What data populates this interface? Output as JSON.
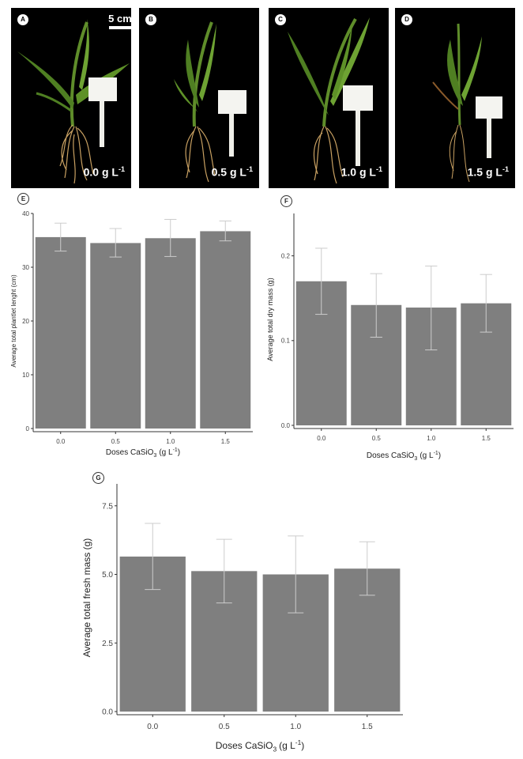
{
  "photos": [
    {
      "id": "A",
      "dose_value": "0.0",
      "dose_unit": "g L",
      "dose_exp": "-1",
      "scale_label": "5 cm"
    },
    {
      "id": "B",
      "dose_value": "0.5",
      "dose_unit": "g L",
      "dose_exp": "-1"
    },
    {
      "id": "C",
      "dose_value": "1.0",
      "dose_unit": "g L",
      "dose_exp": "-1"
    },
    {
      "id": "D",
      "dose_value": "1.5",
      "dose_unit": "g L",
      "dose_exp": "-1"
    }
  ],
  "colors": {
    "bar": "#7f7f7f",
    "error_bar": "#cccccc",
    "axis": "#333333",
    "photo_bg": "#000000"
  },
  "chart_data": [
    {
      "id": "E",
      "type": "bar",
      "categories": [
        "0.0",
        "0.5",
        "1.0",
        "1.5"
      ],
      "values": [
        35.6,
        34.5,
        35.4,
        36.7
      ],
      "error_low": [
        33.0,
        31.9,
        32.0,
        34.9
      ],
      "error_high": [
        38.2,
        37.2,
        38.9,
        38.6
      ],
      "ylim": [
        0,
        40
      ],
      "yticks": [
        0,
        10,
        20,
        30,
        40
      ],
      "ytick_labels": [
        "0",
        "10",
        "20",
        "30",
        "40"
      ],
      "xlabel": "Doses CaSiO",
      "xlabel_sub": "3",
      "xlabel_unit": "(g L",
      "xlabel_exp": "-1",
      "xlabel_close": ")",
      "ylabel": "Average total plantlet lenght (cm)",
      "grid": false
    },
    {
      "id": "F",
      "type": "bar",
      "categories": [
        "0.0",
        "0.5",
        "1.0",
        "1.5"
      ],
      "values": [
        0.17,
        0.142,
        0.139,
        0.144
      ],
      "error_low": [
        0.131,
        0.104,
        0.089,
        0.11
      ],
      "error_high": [
        0.209,
        0.179,
        0.188,
        0.178
      ],
      "ylim": [
        0,
        0.25
      ],
      "yticks": [
        0.0,
        0.1,
        0.2
      ],
      "ytick_labels": [
        "0.0",
        "0.1",
        "0.2"
      ],
      "xlabel": "Doses CaSiO",
      "xlabel_sub": "3",
      "xlabel_unit": "(g L",
      "xlabel_exp": "-1",
      "xlabel_close": ")",
      "ylabel": "Average total dry mass (g)",
      "grid": false
    },
    {
      "id": "G",
      "type": "bar",
      "categories": [
        "0.0",
        "0.5",
        "1.0",
        "1.5"
      ],
      "values": [
        5.65,
        5.12,
        5.0,
        5.21
      ],
      "error_low": [
        4.45,
        3.96,
        3.6,
        4.24
      ],
      "error_high": [
        6.86,
        6.28,
        6.4,
        6.19
      ],
      "ylim": [
        0,
        8.3
      ],
      "yticks": [
        0.0,
        2.5,
        5.0,
        7.5
      ],
      "ytick_labels": [
        "0.0",
        "2.5",
        "5.0",
        "7.5"
      ],
      "xlabel": "Doses CaSiO",
      "xlabel_sub": "3",
      "xlabel_unit": "(g L",
      "xlabel_exp": "-1",
      "xlabel_close": ")",
      "ylabel": "Average total fresh mass (g)",
      "grid": false
    }
  ]
}
